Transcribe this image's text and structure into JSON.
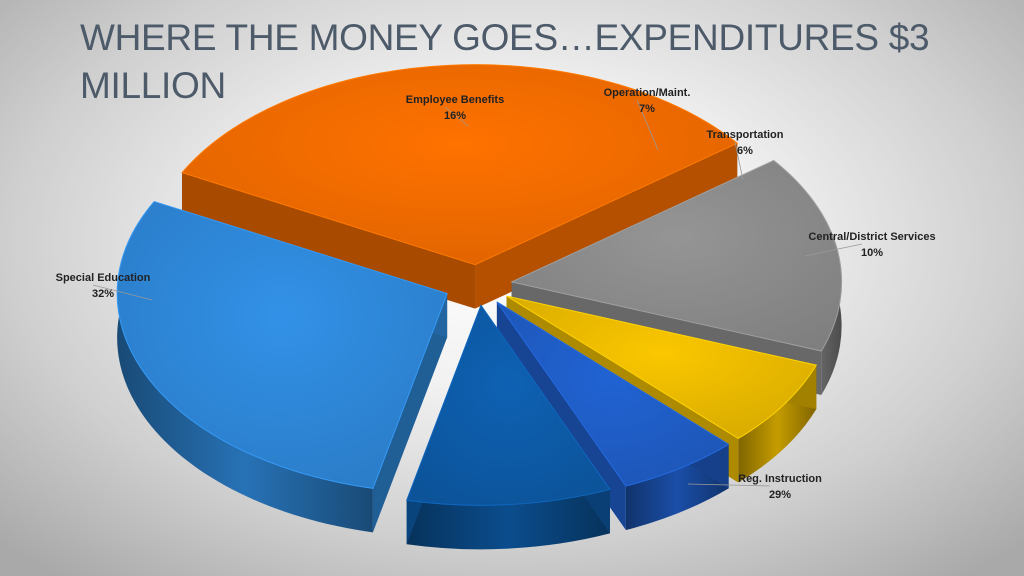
{
  "slide": {
    "title": "WHERE THE MONEY GOES…EXPENDITURES $3 MILLION"
  },
  "chart_data": {
    "type": "pie",
    "style": "3d-exploded",
    "title": "",
    "slices": [
      {
        "label": "Reg. Instruction",
        "value": 29,
        "display": "29%",
        "color": "#2e86d6"
      },
      {
        "label": "Special Education",
        "value": 32,
        "display": "32%",
        "color": "#f06a00"
      },
      {
        "label": "Employee Benefits",
        "value": 16,
        "display": "16%",
        "color": "#8a8a8a"
      },
      {
        "label": "Operation/Maint.",
        "value": 7,
        "display": "7%",
        "color": "#e8b800"
      },
      {
        "label": "Transportation",
        "value": 6,
        "display": "6%",
        "color": "#1f5cc4"
      },
      {
        "label": "Central/District Services",
        "value": 10,
        "display": "10%",
        "color": "#0d5aa6"
      }
    ]
  }
}
